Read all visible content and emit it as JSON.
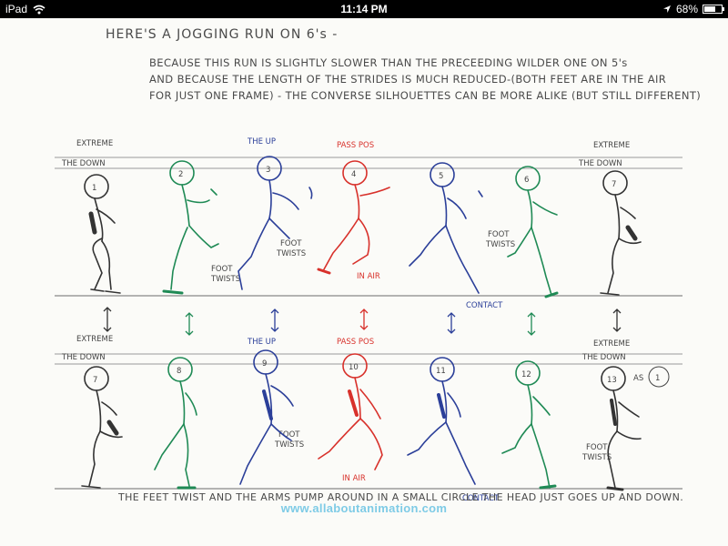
{
  "status_bar": {
    "device": "iPad",
    "time": "11:14 PM",
    "battery": "68%",
    "battery_level": 0.68,
    "icons": [
      "wifi-icon",
      "location-arrow-icon",
      "battery-icon"
    ]
  },
  "sheet": {
    "title": "HERE'S A JOGGING RUN ON 6's -",
    "paragraph": [
      "BECAUSE THIS RUN IS SLIGHTLY SLOWER THAN THE PRECEEDING WILDER ONE ON 5's",
      "AND BECAUSE THE LENGTH OF THE STRIDES IS MUCH REDUCED-(BOTH FEET ARE IN THE AIR",
      "FOR JUST ONE FRAME) - THE CONVERSE SILHOUETTES CAN BE MORE ALIKE (BUT STILL DIFFERENT)"
    ],
    "footer": "THE FEET TWIST AND THE ARMS PUMP AROUND IN A SMALL CIRCLE THE HEAD JUST GOES UP AND DOWN.",
    "watermark": "www.allaboutanimation.com"
  },
  "top_row": {
    "labels": {
      "extreme_left": "EXTREME",
      "the_down_left": "THE DOWN",
      "the_up": "THE UP",
      "pass_pos": "PASS POS",
      "extreme_right": "EXTREME",
      "the_down_right": "THE DOWN",
      "foot_twist_a": "FOOT",
      "foot_twist_a2": "TWISTS",
      "foot_twist_b": "FOOT",
      "foot_twist_b2": "TWISTS",
      "in_air": "IN AIR",
      "contact": "CONTACT",
      "foot_twist_c": "FOOT",
      "foot_twist_c2": "TWISTS"
    },
    "frames": [
      "1",
      "2",
      "3",
      "4",
      "5",
      "6",
      "7"
    ]
  },
  "bottom_row": {
    "labels": {
      "extreme_left": "EXTREME",
      "the_down_left": "THE DOWN",
      "the_up": "THE UP",
      "pass_pos": "PASS POS",
      "extreme_right": "EXTREME",
      "the_down_right": "THE DOWN",
      "as_one": "AS",
      "as_one_num": "1",
      "foot_twists_a": "FOOT",
      "foot_twists_a2": "TWISTS",
      "in_air": "IN AIR",
      "contact": "CONTACT",
      "foot_twists_b": "FOOT",
      "foot_twists_b2": "TWISTS"
    },
    "frames": [
      "7",
      "8",
      "9",
      "10",
      "11",
      "12",
      "13"
    ]
  },
  "colors": {
    "black": "#333333",
    "green": "#1f8a55",
    "blue": "#2b3f99",
    "red": "#d8312b",
    "pencil": "#9a9a9a",
    "watermark": "#7ecbe6"
  }
}
